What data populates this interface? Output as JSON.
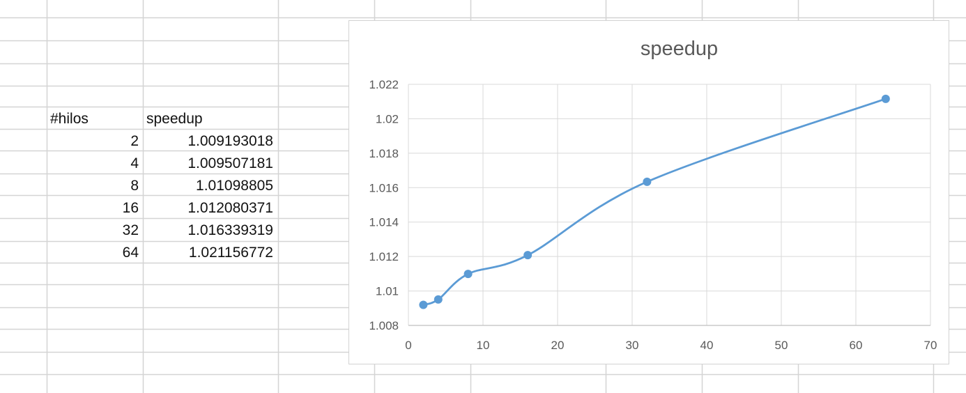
{
  "sheet": {
    "headers": {
      "threads": "#hilos",
      "speedup": "speedup"
    },
    "rows": [
      {
        "threads": "2",
        "speedup": "1.009193018"
      },
      {
        "threads": "4",
        "speedup": "1.009507181"
      },
      {
        "threads": "8",
        "speedup": "1.01098805"
      },
      {
        "threads": "16",
        "speedup": "1.012080371"
      },
      {
        "threads": "32",
        "speedup": "1.016339319"
      },
      {
        "threads": "64",
        "speedup": "1.021156772"
      }
    ]
  },
  "chart_data": {
    "type": "scatter",
    "title": "speedup",
    "smooth": true,
    "markers": true,
    "grid": true,
    "legend": "none",
    "xlabel": "",
    "ylabel": "",
    "xlim": [
      0,
      70
    ],
    "ylim": [
      1.008,
      1.022
    ],
    "xticks": [
      "0",
      "10",
      "20",
      "30",
      "40",
      "50",
      "60",
      "70"
    ],
    "yticks": [
      "1.008",
      "1.01",
      "1.012",
      "1.014",
      "1.016",
      "1.018",
      "1.02",
      "1.022"
    ],
    "series": [
      {
        "color": "#5b9bd5",
        "x": [
          2,
          4,
          8,
          16,
          32,
          64
        ],
        "y": [
          1.009193018,
          1.009507181,
          1.01098805,
          1.012080371,
          1.016339319,
          1.021156772
        ]
      }
    ]
  }
}
